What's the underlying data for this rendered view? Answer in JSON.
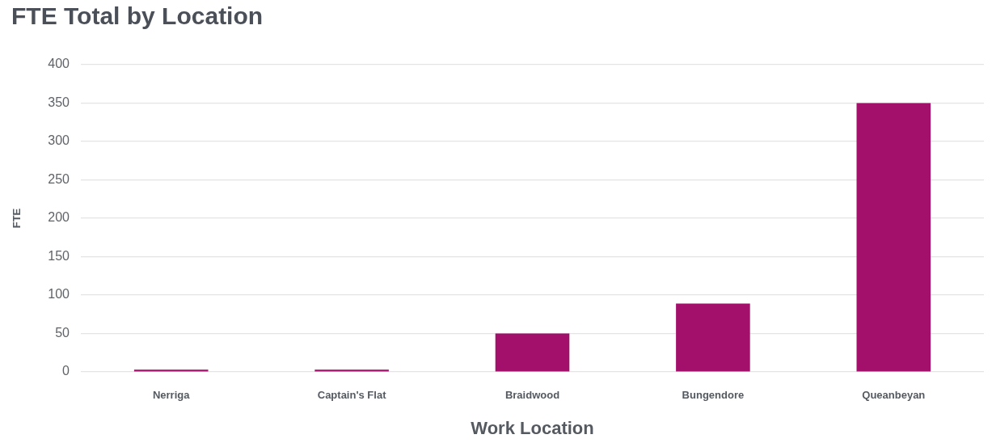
{
  "chart_data": {
    "type": "bar",
    "title": "FTE Total by Location",
    "xlabel": "Work Location",
    "ylabel": "FTE",
    "categories": [
      "Nerriga",
      "Captain's Flat",
      "Braidwood",
      "Bungendore",
      "Queanbeyan"
    ],
    "values": [
      3,
      3,
      50,
      89,
      350
    ],
    "color": "#a3106c",
    "ylim": [
      0,
      400
    ],
    "yticks": [
      0,
      50,
      100,
      150,
      200,
      250,
      300,
      350,
      400
    ],
    "grid": "y"
  }
}
